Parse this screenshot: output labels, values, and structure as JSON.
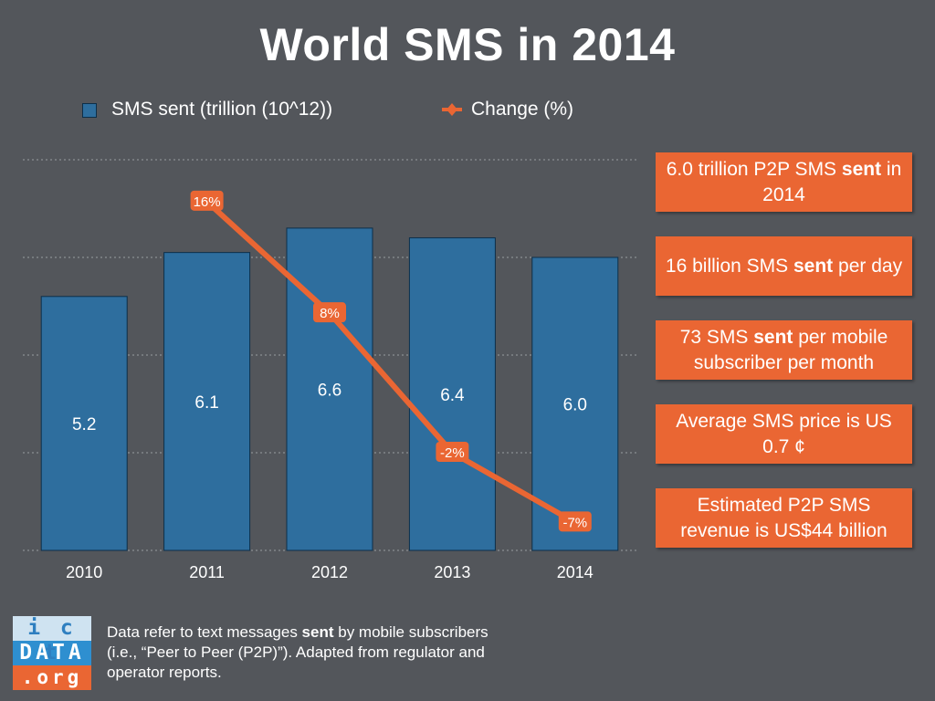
{
  "title": "World SMS in 2014",
  "legend": {
    "bars": "SMS sent (trillion (10^12))",
    "line": "Change (%)"
  },
  "colors": {
    "background": "#53565b",
    "bar": "#2e6e9e",
    "bar_border": "#0c2f4a",
    "line": "#ea6633",
    "fact_box": "#ea6633"
  },
  "chart_data": {
    "type": "bar",
    "title": "World SMS in 2014",
    "categories": [
      "2010",
      "2011",
      "2012",
      "2013",
      "2014"
    ],
    "series": [
      {
        "name": "SMS sent (trillion (10^12))",
        "type": "bar",
        "values": [
          5.2,
          6.1,
          6.6,
          6.4,
          6.0
        ],
        "labels": [
          "5.2",
          "6.1",
          "6.6",
          "6.4",
          "6.0"
        ]
      },
      {
        "name": "Change (%)",
        "type": "line",
        "points": [
          {
            "x": "2011",
            "value": 16,
            "label": "16%"
          },
          {
            "x": "2012",
            "value": 8,
            "label": "8%"
          },
          {
            "x": "2013",
            "value": -2,
            "label": "-2%"
          },
          {
            "x": "2014",
            "value": -7,
            "label": "-7%"
          }
        ]
      }
    ],
    "bar_axis_range": [
      0,
      8
    ],
    "change_axis_range": [
      -9,
      19
    ],
    "grid": "horizontal dotted",
    "legend_position": "top"
  },
  "facts": [
    [
      {
        "t": "6.0 trillion P2P SMS "
      },
      {
        "t": "sent",
        "b": true
      },
      {
        "t": " in 2014"
      }
    ],
    [
      {
        "t": "16 billion SMS "
      },
      {
        "t": "sent",
        "b": true
      },
      {
        "t": " per day"
      }
    ],
    [
      {
        "t": "73 SMS "
      },
      {
        "t": "sent",
        "b": true
      },
      {
        "t": " per mobile subscriber per month"
      }
    ],
    [
      {
        "t": "Average SMS price is US 0.7 ¢"
      }
    ],
    [
      {
        "t": "Estimated P2P SMS revenue is US$44 billion"
      }
    ]
  ],
  "logo": {
    "row1": "i c t",
    "row2": "DATA",
    "row3": ".org"
  },
  "footnote": [
    {
      "t": "Data refer to text messages "
    },
    {
      "t": "sent",
      "b": true
    },
    {
      "t": " by mobile subscribers (i.e., “Peer to Peer (P2P)”). Adapted from regulator and operator reports."
    }
  ]
}
